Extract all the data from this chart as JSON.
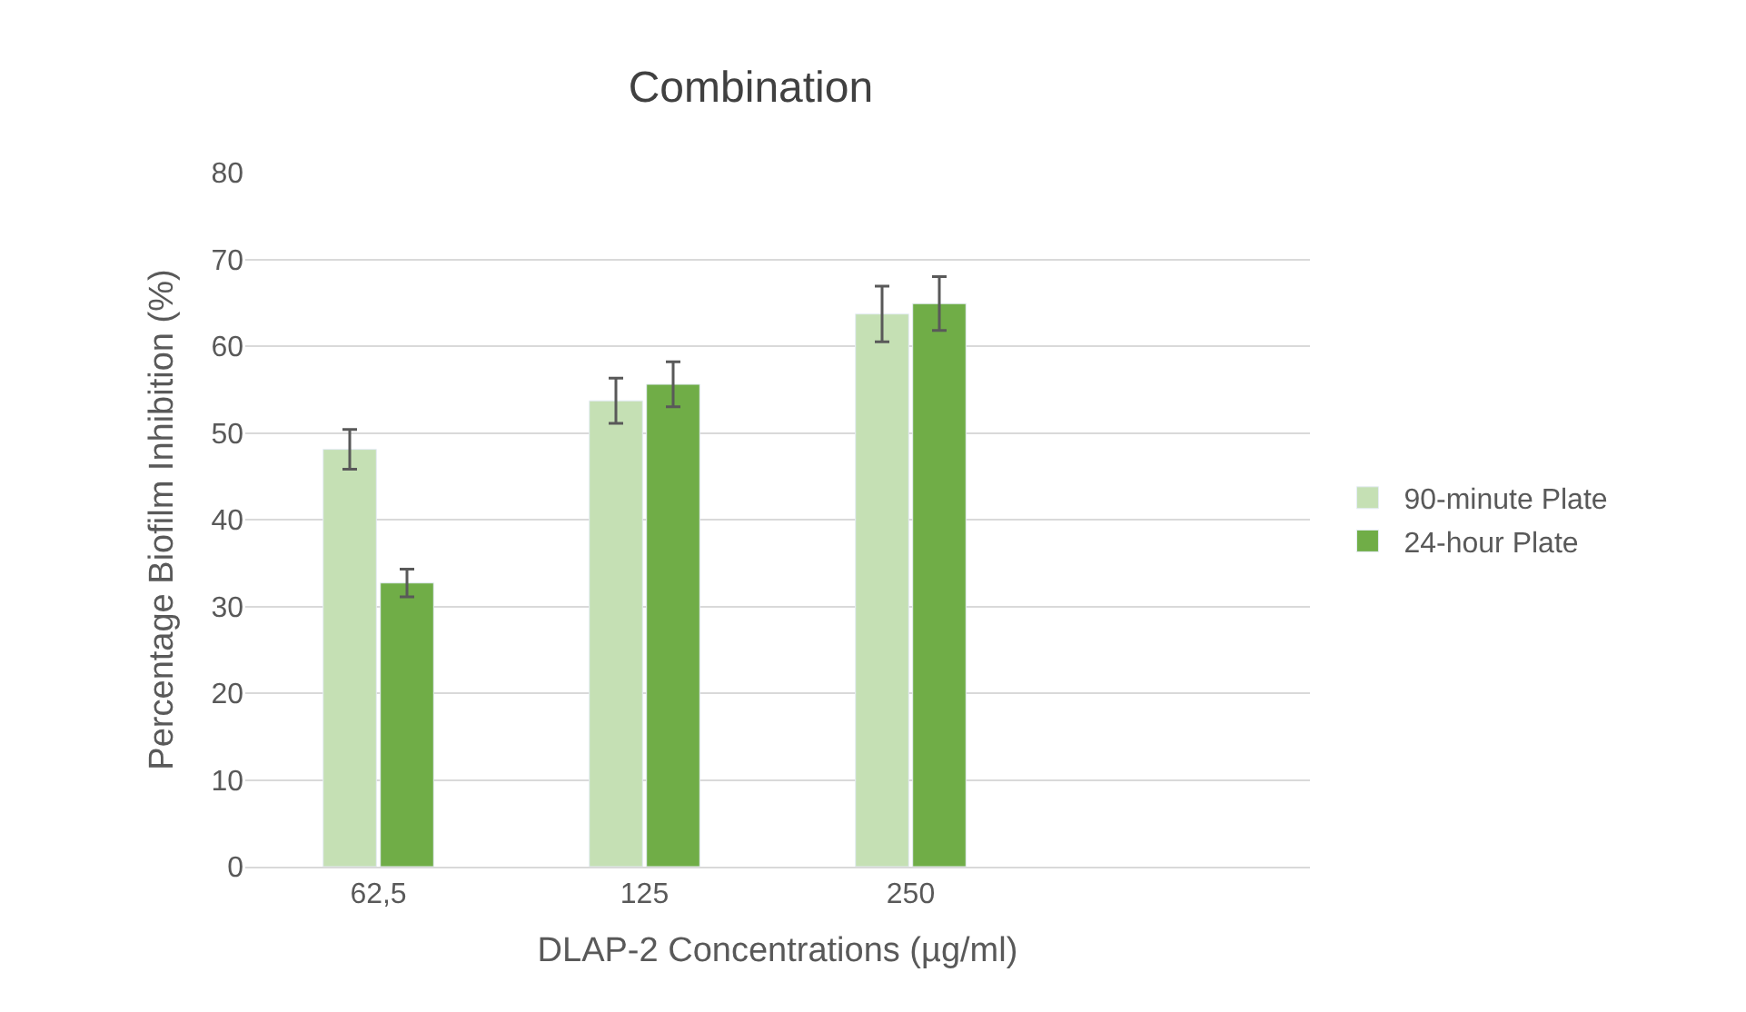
{
  "chart_data": {
    "type": "bar",
    "title": "Combination",
    "xlabel": "DLAP-2 Concentrations (µg/ml)",
    "ylabel": "Percentage Biofilm Inhibition (%)",
    "categories": [
      "62,5",
      "125",
      "250",
      null
    ],
    "series": [
      {
        "name": "90-minute Plate",
        "color": "#c5e0b4",
        "values": [
          48.1,
          53.7,
          63.7,
          null
        ],
        "errors": [
          2.3,
          2.6,
          3.2,
          null
        ]
      },
      {
        "name": "24-hour Plate",
        "color": "#70ad47",
        "values": [
          32.7,
          55.6,
          64.9,
          null
        ],
        "errors": [
          1.6,
          2.6,
          3.1,
          null
        ]
      }
    ],
    "ylim": [
      0,
      80
    ],
    "yticks": [
      0,
      10,
      20,
      30,
      40,
      50,
      60,
      70,
      80
    ],
    "grid": "y",
    "legend": "right"
  }
}
